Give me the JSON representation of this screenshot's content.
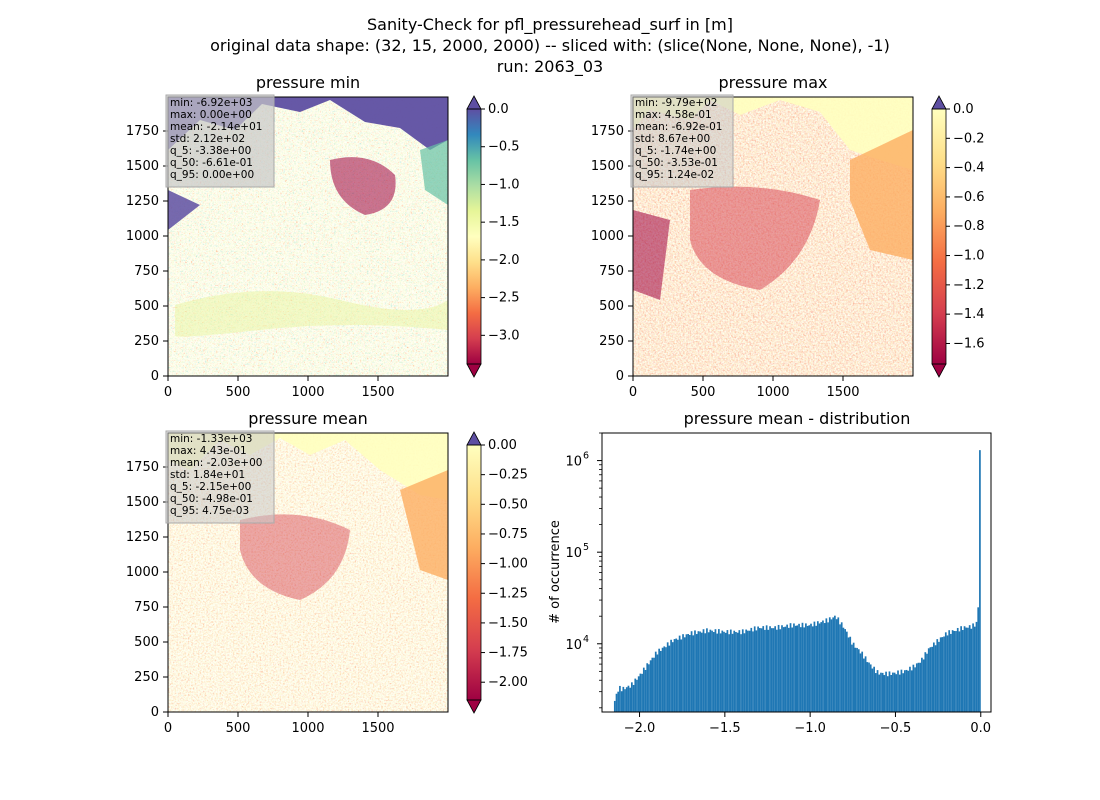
{
  "figure": {
    "title_lines": [
      "Sanity-Check for pfl_pressurehead_surf in [m]",
      "original data shape: (32, 15, 2000, 2000) -- sliced with: (slice(None, None, None), -1)",
      "run: 2063_03"
    ]
  },
  "panels": [
    {
      "title": "pressure min",
      "stats": [
        "min: -6.92e+03",
        "max: 0.00e+00",
        "mean: -2.14e+01",
        "std: 2.12e+02",
        "q_5: -3.38e+00",
        "q_50: -6.61e-01",
        "q_95: 0.00e+00"
      ],
      "x_ticks": [
        "0",
        "500",
        "1000",
        "1500"
      ],
      "y_ticks": [
        "0",
        "250",
        "500",
        "750",
        "1000",
        "1250",
        "1500",
        "1750"
      ],
      "colorbar": {
        "ticks": [
          "0.0",
          "−0.5",
          "−1.0",
          "−1.5",
          "−2.0",
          "−2.5",
          "−3.0"
        ],
        "tick_values": [
          0.0,
          -0.5,
          -1.0,
          -1.5,
          -2.0,
          -2.5,
          -3.0
        ],
        "vmin": -3.38,
        "vmax": 0.0,
        "extend": "both",
        "under_color": "#9e0142",
        "over_color": "#5e4fa2"
      }
    },
    {
      "title": "pressure max",
      "stats": [
        "min: -9.79e+02",
        "max: 4.58e-01",
        "mean: -6.92e-01",
        "std: 8.67e+00",
        "q_5: -1.74e+00",
        "q_50: -3.53e-01",
        "q_95: 1.24e-02"
      ],
      "x_ticks": [
        "0",
        "500",
        "1000",
        "1500"
      ],
      "y_ticks": [
        "0",
        "250",
        "500",
        "750",
        "1000",
        "1250",
        "1500",
        "1750"
      ],
      "colorbar": {
        "ticks": [
          "0.0",
          "−0.2",
          "−0.4",
          "−0.6",
          "−0.8",
          "−1.0",
          "−1.2",
          "−1.4",
          "−1.6"
        ],
        "tick_values": [
          0.0,
          -0.2,
          -0.4,
          -0.6,
          -0.8,
          -1.0,
          -1.2,
          -1.4,
          -1.6
        ],
        "vmin": -1.74,
        "vmax": 0.0,
        "extend": "both",
        "under_color": "#9e0142",
        "over_color": "#5e4fa2"
      }
    },
    {
      "title": "pressure mean",
      "stats": [
        "min: -1.33e+03",
        "max: 4.43e-01",
        "mean: -2.03e+00",
        "std: 1.84e+01",
        "q_5: -2.15e+00",
        "q_50: -4.98e-01",
        "q_95: 4.75e-03"
      ],
      "x_ticks": [
        "0",
        "500",
        "1000",
        "1500"
      ],
      "y_ticks": [
        "0",
        "250",
        "500",
        "750",
        "1000",
        "1250",
        "1500",
        "1750"
      ],
      "colorbar": {
        "ticks": [
          "0.00",
          "−0.25",
          "−0.50",
          "−0.75",
          "−1.00",
          "−1.25",
          "−1.50",
          "−1.75",
          "−2.00"
        ],
        "tick_values": [
          0.0,
          -0.25,
          -0.5,
          -0.75,
          -1.0,
          -1.25,
          -1.5,
          -1.75,
          -2.0
        ],
        "vmin": -2.15,
        "vmax": 0.0,
        "extend": "both",
        "under_color": "#9e0142",
        "over_color": "#5e4fa2"
      }
    }
  ],
  "colors": {
    "spectral": [
      "#9e0142",
      "#d53e4f",
      "#f46d43",
      "#fdae61",
      "#fee08b",
      "#ffffbf",
      "#e6f598",
      "#abdda4",
      "#66c2a5",
      "#3288bd",
      "#5e4fa2"
    ],
    "hist_bar": "#1f77b4",
    "stats_box": "#c8c8c8"
  },
  "chart_data": {
    "type": "bar",
    "title": "pressure mean - distribution",
    "xlabel": "",
    "ylabel": "# of occurrence",
    "y_scale": "log",
    "xlim": [
      -2.22,
      0.06
    ],
    "ylim": [
      1800,
      2000000
    ],
    "x_ticks": [
      -2.0,
      -1.5,
      -1.0,
      -0.5,
      0.0
    ],
    "x_tick_labels": [
      "−2.0",
      "−1.5",
      "−1.0",
      "−0.5",
      "0.0"
    ],
    "y_ticks": [
      10000,
      100000,
      1000000
    ],
    "y_tick_labels": [
      "10^4",
      "10^5",
      "10^6"
    ],
    "bin_range": [
      -2.15,
      0.0
    ],
    "profile_x": [
      -2.15,
      -2.13,
      -2.12,
      -2.1,
      -2.05,
      -2.0,
      -1.9,
      -1.8,
      -1.7,
      -1.6,
      -1.5,
      -1.4,
      -1.3,
      -1.2,
      -1.1,
      -1.0,
      -0.9,
      -0.85,
      -0.8,
      -0.75,
      -0.7,
      -0.65,
      -0.62,
      -0.6,
      -0.55,
      -0.5,
      -0.45,
      -0.4,
      -0.35,
      -0.3,
      -0.2,
      -0.1,
      -0.05,
      -0.02,
      -0.01,
      0.0
    ],
    "profile_y": [
      2200,
      3000,
      3300,
      3200,
      3500,
      4500,
      8000,
      11000,
      13000,
      14000,
      13500,
      13500,
      15000,
      15000,
      16000,
      16000,
      18000,
      20000,
      15000,
      10000,
      8000,
      6000,
      5200,
      4800,
      4700,
      4800,
      5000,
      5500,
      6500,
      9000,
      13000,
      15000,
      15500,
      17000,
      25000,
      1300000
    ]
  }
}
